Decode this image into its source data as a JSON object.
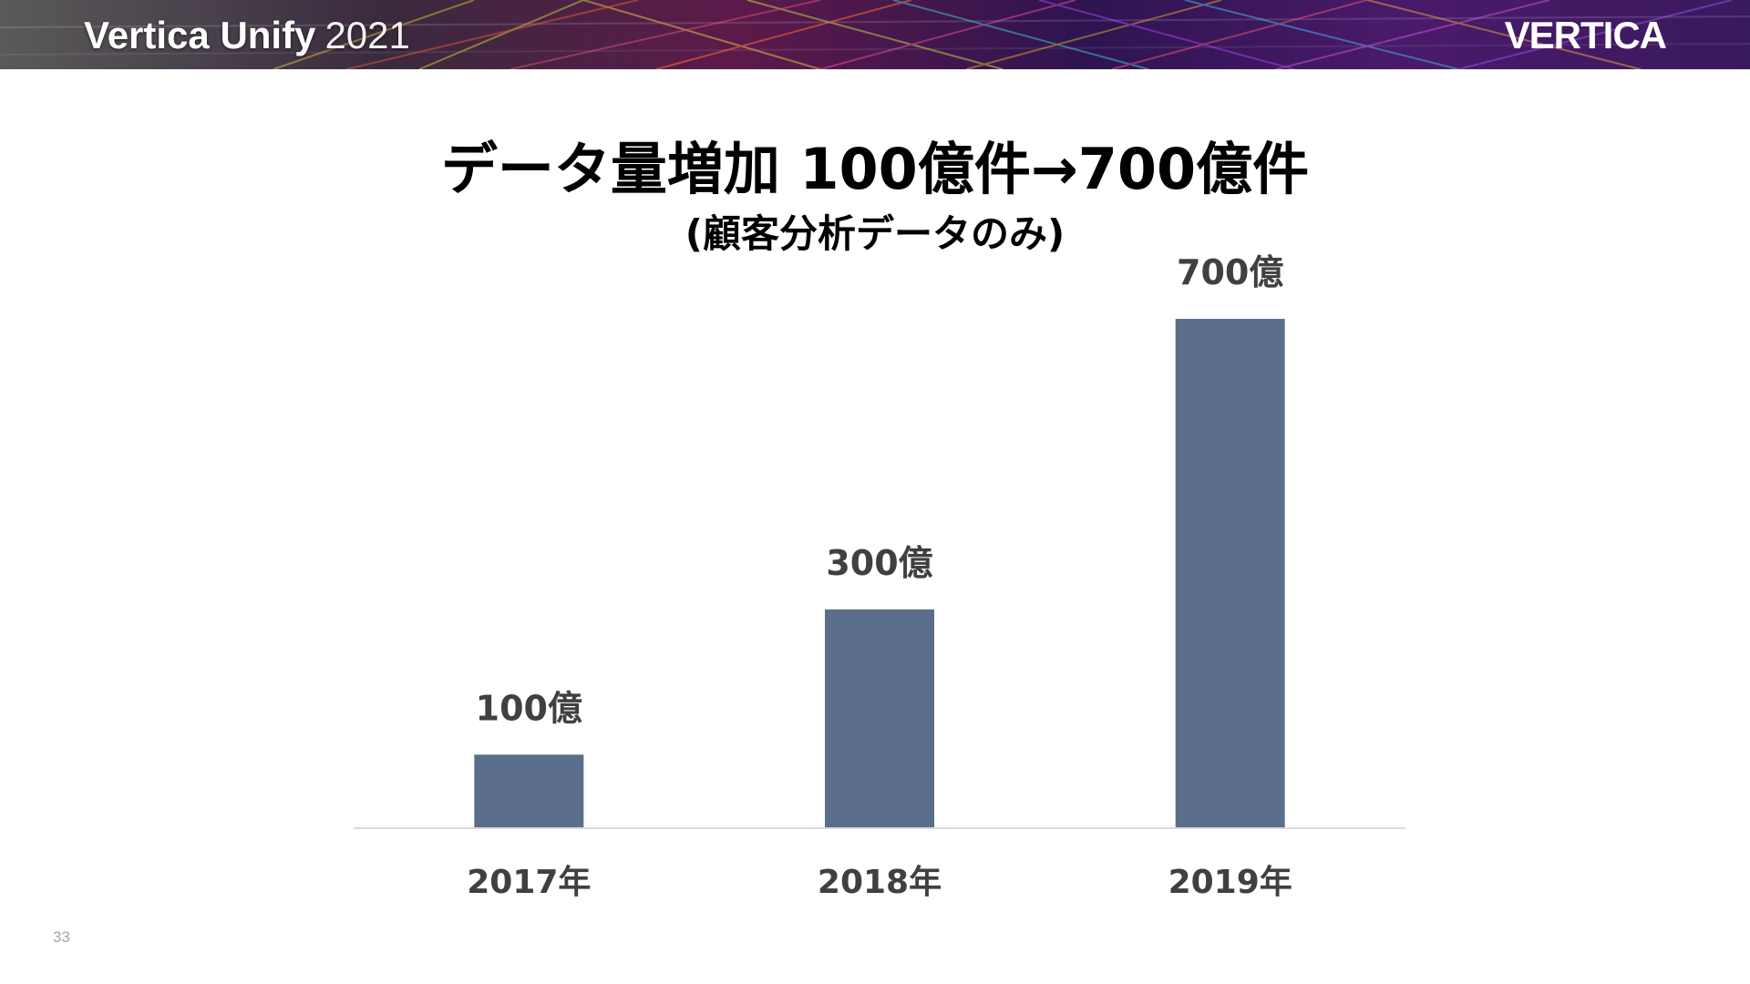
{
  "header": {
    "brand": "Vertica Unify",
    "year": "2021",
    "logo_text": "VERTICA"
  },
  "chart_data": {
    "type": "bar",
    "title": "データ量増加 100億件→700億件",
    "subtitle": "(顧客分析データのみ)",
    "categories": [
      "2017年",
      "2018年",
      "2019年"
    ],
    "values": [
      100,
      300,
      700
    ],
    "data_labels": [
      "100億",
      "300億",
      "700億"
    ],
    "value_unit": "億件",
    "ylim": [
      0,
      700
    ],
    "bar_color": "#5a6e8c",
    "axis_color": "#d9d9d9",
    "label_color": "#404040",
    "grid": false,
    "legend": "none"
  },
  "footer": {
    "page_number": "33"
  }
}
